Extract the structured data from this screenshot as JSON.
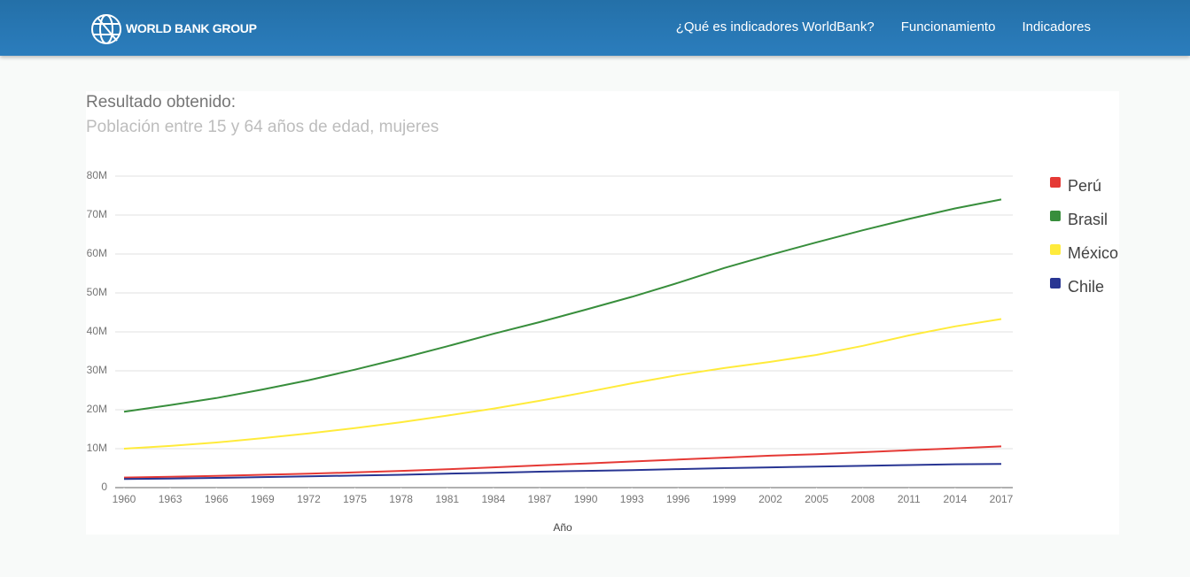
{
  "header": {
    "brand": "WORLD BANK GROUP",
    "nav": [
      "¿Qué es indicadores WorldBank?",
      "Funcionamiento",
      "Indicadores"
    ]
  },
  "result": {
    "label": "Resultado obtenido:"
  },
  "chart_data": {
    "type": "line",
    "title": "Población entre 15 y 64 años de edad, mujeres",
    "x_label": "Año",
    "x": [
      1960,
      1963,
      1966,
      1969,
      1972,
      1975,
      1978,
      1981,
      1984,
      1987,
      1990,
      1993,
      1996,
      1999,
      2002,
      2005,
      2008,
      2011,
      2014,
      2017
    ],
    "xlim": [
      1960,
      2017
    ],
    "xticks": [
      1960,
      1963,
      1966,
      1969,
      1972,
      1975,
      1978,
      1981,
      1984,
      1987,
      1990,
      1993,
      1996,
      1999,
      2002,
      2005,
      2008,
      2011,
      2014,
      2017
    ],
    "ylim": [
      0,
      80000000
    ],
    "yticks": [
      0,
      {
        "value": 10000000,
        "label": "10M"
      },
      {
        "value": 20000000,
        "label": "20M"
      },
      {
        "value": 30000000,
        "label": "30M"
      },
      {
        "value": 40000000,
        "label": "40M"
      },
      {
        "value": 50000000,
        "label": "50M"
      },
      {
        "value": 60000000,
        "label": "60M"
      },
      {
        "value": 70000000,
        "label": "70M"
      },
      {
        "value": 80000000,
        "label": "80M"
      }
    ],
    "grid": true,
    "legend": "right",
    "series": [
      {
        "name": "Perú",
        "color": "#e53935",
        "values": [
          2600000,
          2800000,
          3000000,
          3300000,
          3600000,
          3900000,
          4300000,
          4700000,
          5200000,
          5700000,
          6200000,
          6700000,
          7200000,
          7700000,
          8200000,
          8600000,
          9100000,
          9600000,
          10100000,
          10600000
        ]
      },
      {
        "name": "Brasil",
        "color": "#388e3c",
        "values": [
          19500000,
          21200000,
          23000000,
          25200000,
          27600000,
          30300000,
          33200000,
          36300000,
          39500000,
          42500000,
          45700000,
          49000000,
          52600000,
          56400000,
          59800000,
          63000000,
          66100000,
          69000000,
          71700000,
          74000000
        ]
      },
      {
        "name": "México",
        "color": "#ffeb3b",
        "values": [
          10000000,
          10700000,
          11600000,
          12700000,
          13900000,
          15300000,
          16800000,
          18500000,
          20300000,
          22300000,
          24500000,
          26800000,
          28900000,
          30700000,
          32300000,
          34100000,
          36400000,
          39100000,
          41400000,
          43300000
        ]
      },
      {
        "name": "Chile",
        "color": "#283593",
        "values": [
          2200000,
          2350000,
          2500000,
          2700000,
          2900000,
          3100000,
          3300000,
          3600000,
          3800000,
          4100000,
          4300000,
          4500000,
          4750000,
          5000000,
          5200000,
          5400000,
          5600000,
          5800000,
          6000000,
          6100000
        ]
      }
    ]
  }
}
